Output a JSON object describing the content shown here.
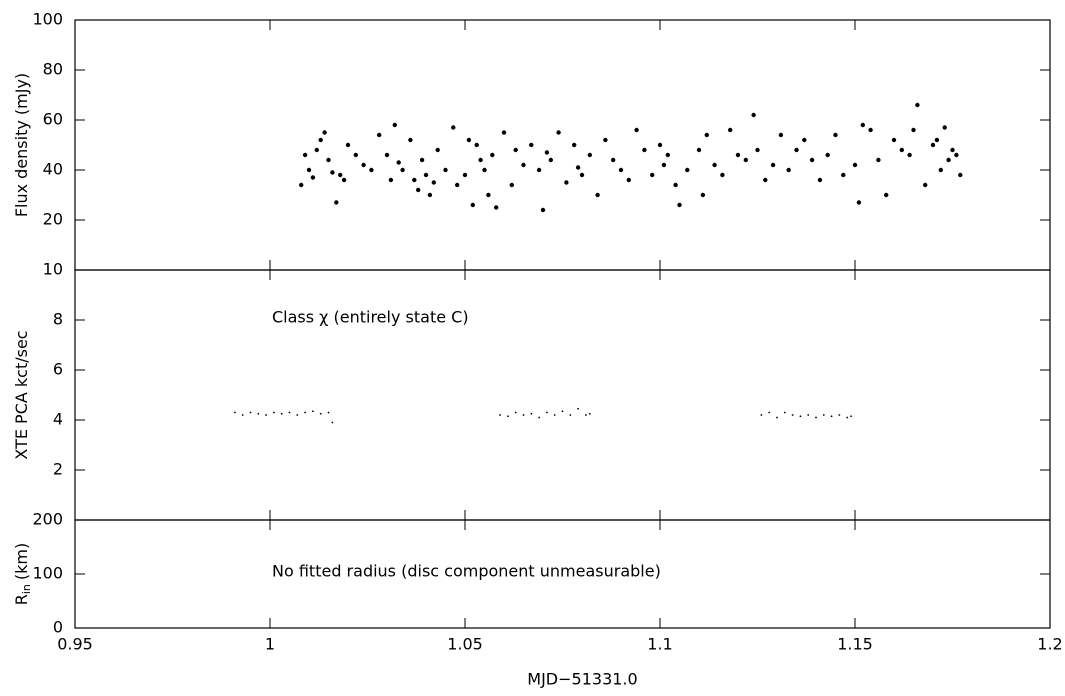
{
  "chart_data": [
    {
      "type": "scatter",
      "ylabel": "Flux density (mJy)",
      "xlim": [
        0.95,
        1.2
      ],
      "xticks": [
        0.95,
        1,
        1.05,
        1.1,
        1.15,
        1.2
      ],
      "ylim": [
        0,
        100
      ],
      "yticks": [
        20,
        40,
        60,
        80,
        100
      ],
      "color": "#000000",
      "marker_size": 2.2,
      "x": [
        1.008,
        1.009,
        1.01,
        1.011,
        1.012,
        1.013,
        1.014,
        1.015,
        1.016,
        1.017,
        1.018,
        1.019,
        1.02,
        1.022,
        1.024,
        1.026,
        1.028,
        1.03,
        1.031,
        1.032,
        1.033,
        1.034,
        1.036,
        1.037,
        1.038,
        1.039,
        1.04,
        1.041,
        1.042,
        1.043,
        1.045,
        1.047,
        1.048,
        1.05,
        1.051,
        1.052,
        1.053,
        1.054,
        1.055,
        1.056,
        1.057,
        1.058,
        1.06,
        1.062,
        1.063,
        1.065,
        1.067,
        1.069,
        1.07,
        1.071,
        1.072,
        1.074,
        1.076,
        1.078,
        1.079,
        1.08,
        1.082,
        1.084,
        1.086,
        1.088,
        1.09,
        1.092,
        1.094,
        1.096,
        1.098,
        1.1,
        1.101,
        1.102,
        1.104,
        1.105,
        1.107,
        1.11,
        1.111,
        1.112,
        1.114,
        1.116,
        1.118,
        1.12,
        1.122,
        1.124,
        1.125,
        1.127,
        1.129,
        1.131,
        1.133,
        1.135,
        1.137,
        1.139,
        1.141,
        1.143,
        1.145,
        1.147,
        1.15,
        1.151,
        1.152,
        1.154,
        1.156,
        1.158,
        1.16,
        1.162,
        1.164,
        1.165,
        1.166,
        1.168,
        1.17,
        1.171,
        1.172,
        1.173,
        1.174,
        1.175,
        1.176,
        1.177
      ],
      "values": [
        34,
        46,
        40,
        37,
        48,
        52,
        55,
        44,
        39,
        27,
        38,
        36,
        50,
        46,
        42,
        40,
        54,
        46,
        36,
        58,
        43,
        40,
        52,
        36,
        32,
        44,
        38,
        30,
        35,
        48,
        40,
        57,
        34,
        38,
        52,
        26,
        50,
        44,
        40,
        30,
        46,
        25,
        55,
        34,
        48,
        42,
        50,
        40,
        24,
        47,
        44,
        55,
        35,
        50,
        41,
        38,
        46,
        30,
        52,
        44,
        40,
        36,
        56,
        48,
        38,
        50,
        42,
        46,
        34,
        26,
        40,
        48,
        30,
        54,
        42,
        38,
        56,
        46,
        44,
        62,
        48,
        36,
        42,
        54,
        40,
        48,
        52,
        44,
        36,
        46,
        54,
        38,
        42,
        27,
        58,
        56,
        44,
        30,
        52,
        48,
        46,
        56,
        66,
        34,
        50,
        52,
        40,
        57,
        44,
        48,
        46,
        38
      ],
      "grid": false
    },
    {
      "type": "scatter",
      "ylabel": "XTE PCA kct/sec",
      "annotation": "Class χ (entirely state C)",
      "xlim": [
        0.95,
        1.2
      ],
      "xticks": [
        0.95,
        1,
        1.05,
        1.1,
        1.15,
        1.2
      ],
      "ylim": [
        0,
        10
      ],
      "yticks": [
        2,
        4,
        6,
        8,
        10
      ],
      "color": "#000000",
      "marker_size": 0.9,
      "x": [
        0.991,
        0.993,
        0.995,
        0.997,
        0.999,
        1.001,
        1.003,
        1.005,
        1.007,
        1.009,
        1.011,
        1.013,
        1.015,
        1.016,
        1.059,
        1.061,
        1.063,
        1.065,
        1.067,
        1.069,
        1.071,
        1.073,
        1.075,
        1.077,
        1.079,
        1.081,
        1.082,
        1.126,
        1.128,
        1.13,
        1.132,
        1.134,
        1.136,
        1.138,
        1.14,
        1.142,
        1.144,
        1.146,
        1.148,
        1.149
      ],
      "values": [
        4.3,
        4.2,
        4.3,
        4.25,
        4.2,
        4.3,
        4.25,
        4.3,
        4.2,
        4.3,
        4.35,
        4.25,
        4.3,
        3.9,
        4.2,
        4.15,
        4.3,
        4.2,
        4.25,
        4.1,
        4.3,
        4.2,
        4.35,
        4.2,
        4.45,
        4.2,
        4.25,
        4.2,
        4.3,
        4.1,
        4.3,
        4.2,
        4.15,
        4.2,
        4.1,
        4.2,
        4.15,
        4.2,
        4.1,
        4.15
      ],
      "grid": false
    },
    {
      "type": "scatter",
      "ylabel": "R",
      "ylabel_subscript": "in",
      "ylabel_unit": "(km)",
      "annotation": "No fitted radius (disc component unmeasurable)",
      "xlabel": "MJD−51331.0",
      "xlim": [
        0.95,
        1.2
      ],
      "xticks": [
        0.95,
        1,
        1.05,
        1.1,
        1.15,
        1.2
      ],
      "ylim": [
        0,
        200
      ],
      "yticks": [
        0,
        100,
        200
      ],
      "color": "#000000",
      "x": [],
      "values": [],
      "grid": false
    }
  ]
}
